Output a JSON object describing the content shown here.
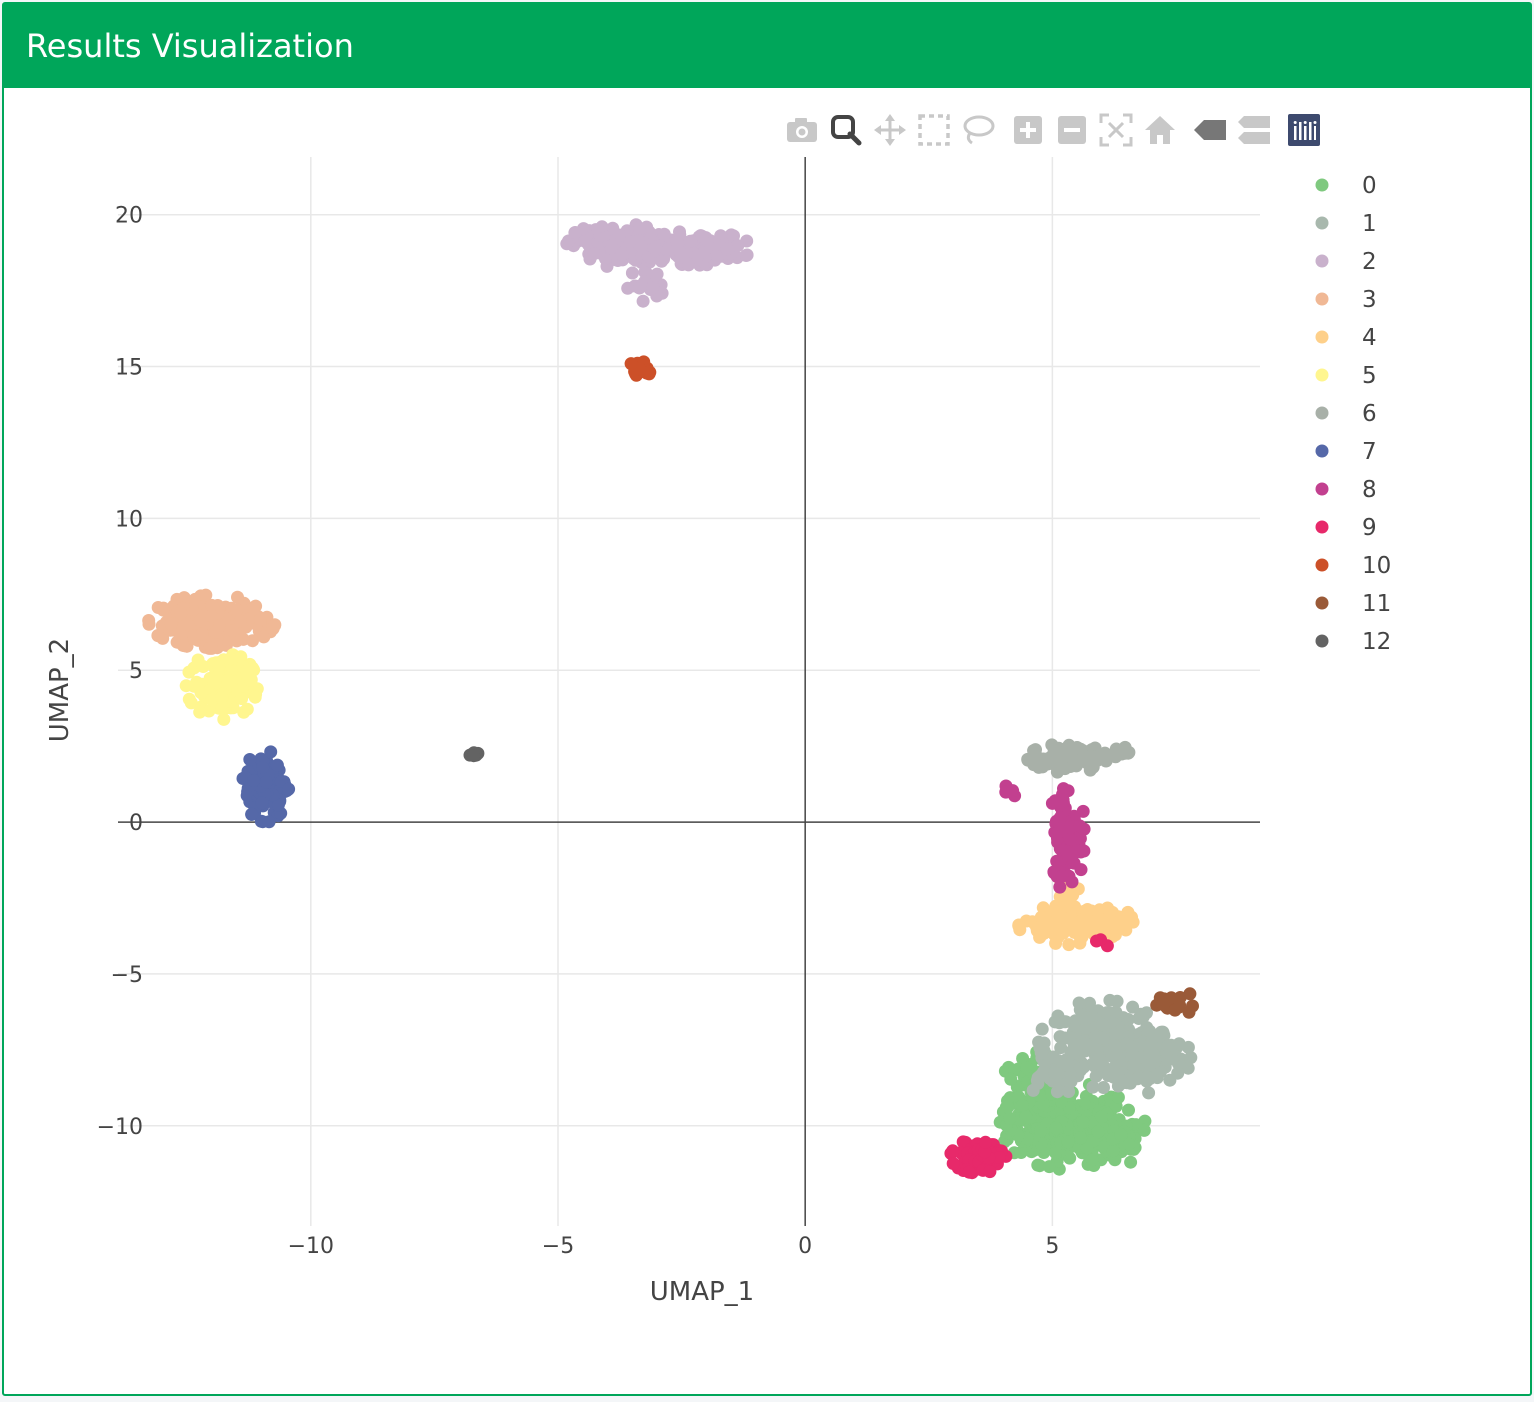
{
  "panel": {
    "title": "Results Visualization"
  },
  "modebar": {
    "buttons": [
      {
        "name": "camera-icon"
      },
      {
        "name": "zoom-icon",
        "active": true
      },
      {
        "name": "pan-icon"
      },
      {
        "name": "box-select-icon"
      },
      {
        "name": "lasso-select-icon"
      },
      {
        "name": "zoom-in-icon"
      },
      {
        "name": "zoom-out-icon"
      },
      {
        "name": "autoscale-icon"
      },
      {
        "name": "reset-axes-icon"
      },
      {
        "name": "hover-closest-icon"
      },
      {
        "name": "hover-compare-icon"
      },
      {
        "name": "plotly-logo-icon"
      }
    ]
  },
  "chart_data": {
    "type": "scatter",
    "xlabel": "UMAP_1",
    "ylabel": "UMAP_2",
    "xlim": [
      -13.9,
      9.2
    ],
    "ylim": [
      -13.3,
      21.9
    ],
    "xticks": [
      -10,
      -5,
      0,
      5
    ],
    "yticks": [
      -10,
      -5,
      0,
      5,
      10,
      15,
      20
    ],
    "xtick_labels": [
      "−10",
      "−5",
      "0",
      "5"
    ],
    "ytick_labels": [
      "−10",
      "−5",
      "0",
      "5",
      "10",
      "15",
      "20"
    ],
    "grid": true,
    "zero_lines": true,
    "legend_position": "top-right",
    "series": [
      {
        "name": "0",
        "color": "#7fc97f",
        "blobs": [
          [
            5.3,
            -10.0,
            0.85,
            0.9,
            260
          ],
          [
            4.6,
            -9.0,
            0.45,
            0.9,
            90
          ],
          [
            6.2,
            -10.5,
            0.6,
            0.6,
            60
          ]
        ]
      },
      {
        "name": "1",
        "color": "#a8b8ad",
        "blobs": [
          [
            6.0,
            -7.3,
            0.8,
            0.9,
            200
          ],
          [
            7.0,
            -7.8,
            0.5,
            0.7,
            110
          ],
          [
            5.0,
            -8.2,
            0.4,
            0.5,
            50
          ]
        ]
      },
      {
        "name": "2",
        "color": "#c9b1cc",
        "blobs": [
          [
            -3.8,
            19.0,
            0.65,
            0.45,
            140
          ],
          [
            -2.2,
            18.9,
            0.7,
            0.35,
            110
          ],
          [
            -3.2,
            17.7,
            0.25,
            0.35,
            20
          ]
        ]
      },
      {
        "name": "3",
        "color": "#f0b895",
        "blobs": [
          [
            -12.0,
            6.6,
            0.8,
            0.55,
            190
          ]
        ]
      },
      {
        "name": "4",
        "color": "#fed08a",
        "blobs": [
          [
            5.2,
            -3.4,
            0.55,
            0.4,
            120
          ],
          [
            6.2,
            -3.3,
            0.3,
            0.3,
            40
          ],
          [
            5.3,
            -2.4,
            0.15,
            0.35,
            20
          ]
        ]
      },
      {
        "name": "5",
        "color": "#fff68f",
        "blobs": [
          [
            -11.8,
            4.5,
            0.45,
            0.7,
            130
          ]
        ]
      },
      {
        "name": "6",
        "color": "#a8b0a8",
        "blobs": [
          [
            5.3,
            2.1,
            0.5,
            0.3,
            90
          ],
          [
            6.3,
            2.3,
            0.25,
            0.12,
            12
          ]
        ]
      },
      {
        "name": "7",
        "color": "#5568a8",
        "blobs": [
          [
            -10.9,
            1.2,
            0.3,
            0.75,
            140
          ]
        ]
      },
      {
        "name": "8",
        "color": "#c2408f",
        "blobs": [
          [
            5.3,
            -0.4,
            0.22,
            1.2,
            90
          ],
          [
            4.1,
            1.0,
            0.12,
            0.12,
            5
          ]
        ]
      },
      {
        "name": "9",
        "color": "#e7296a",
        "blobs": [
          [
            3.5,
            -11.0,
            0.35,
            0.35,
            110
          ],
          [
            6.0,
            -4.0,
            0.08,
            0.1,
            3
          ]
        ]
      },
      {
        "name": "10",
        "color": "#cc5028",
        "blobs": [
          [
            -3.3,
            14.9,
            0.18,
            0.22,
            16
          ]
        ]
      },
      {
        "name": "11",
        "color": "#9a5a38",
        "blobs": [
          [
            7.5,
            -6.0,
            0.35,
            0.25,
            16
          ]
        ]
      },
      {
        "name": "12",
        "color": "#636363",
        "blobs": [
          [
            -6.7,
            2.25,
            0.06,
            0.06,
            6
          ]
        ]
      }
    ]
  }
}
